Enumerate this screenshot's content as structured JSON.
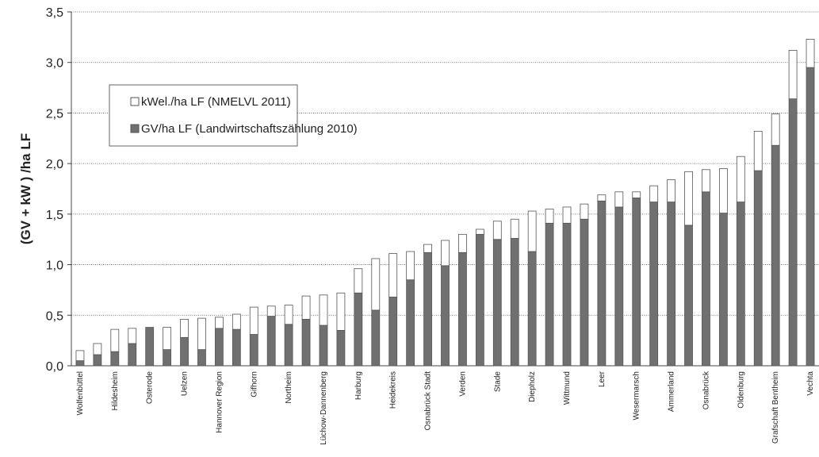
{
  "chart_data": {
    "type": "stacked_bar",
    "y_label": "(GV + kW ) /ha LF",
    "categories": [
      "Wolfenbüttel",
      null,
      "Hildesheim",
      null,
      "Osterode",
      null,
      "Uelzen",
      null,
      "Hannover Region",
      null,
      "Gifhorn",
      null,
      "Northeim",
      null,
      "Lüchow-Dannenberg",
      null,
      "Harburg",
      null,
      "Heidekreis",
      null,
      "Osnabrück Stadt",
      null,
      "Verden",
      null,
      "Stade",
      null,
      "Diepholz",
      null,
      "Wittmund",
      null,
      "Leer",
      null,
      "Wesermarsch",
      null,
      "Ammerland",
      null,
      "Osnabrück",
      null,
      "Oldenburg",
      null,
      "Grafschaft Bentheim",
      null,
      "Vechta"
    ],
    "series": [
      {
        "name": "GV/ha LF (Landwirtschaftszählung 2010)",
        "color": "#707070",
        "values": [
          0.05,
          0.11,
          0.14,
          0.22,
          0.38,
          0.16,
          0.28,
          0.16,
          0.37,
          0.36,
          0.31,
          0.49,
          0.41,
          0.46,
          0.4,
          0.35,
          0.72,
          0.55,
          0.68,
          0.85,
          1.12,
          0.99,
          1.12,
          1.3,
          1.25,
          1.26,
          1.13,
          1.41,
          1.41,
          1.45,
          1.63,
          1.57,
          1.66,
          1.62,
          1.62,
          1.39,
          1.72,
          1.51,
          1.62,
          1.93,
          2.18,
          2.64,
          2.95
        ]
      },
      {
        "name": "kWel./ha LF  (NMELVL 2011)",
        "color": "#ffffff",
        "values": [
          0.1,
          0.11,
          0.22,
          0.15,
          0,
          0.22,
          0.18,
          0.31,
          0.11,
          0.15,
          0.27,
          0.1,
          0.19,
          0.23,
          0.3,
          0.37,
          0.24,
          0.51,
          0.43,
          0.28,
          0.08,
          0.25,
          0.18,
          0.05,
          0.18,
          0.19,
          0.4,
          0.14,
          0.16,
          0.15,
          0.06,
          0.15,
          0.06,
          0.16,
          0.22,
          0.53,
          0.22,
          0.44,
          0.45,
          0.39,
          0.31,
          0.48,
          0.28
        ]
      }
    ],
    "ylim": [
      0,
      3.5
    ],
    "yticks": [
      {
        "value": 0,
        "label": "0,0"
      },
      {
        "value": 0.5,
        "label": "0,5"
      },
      {
        "value": 1,
        "label": "1,0"
      },
      {
        "value": 1.5,
        "label": "1,5"
      },
      {
        "value": 2,
        "label": "2,0"
      },
      {
        "value": 2.5,
        "label": "2,5"
      },
      {
        "value": 3,
        "label": "3,0"
      },
      {
        "value": 3.5,
        "label": "3,5"
      }
    ],
    "grid": true,
    "legend": "upper left"
  }
}
